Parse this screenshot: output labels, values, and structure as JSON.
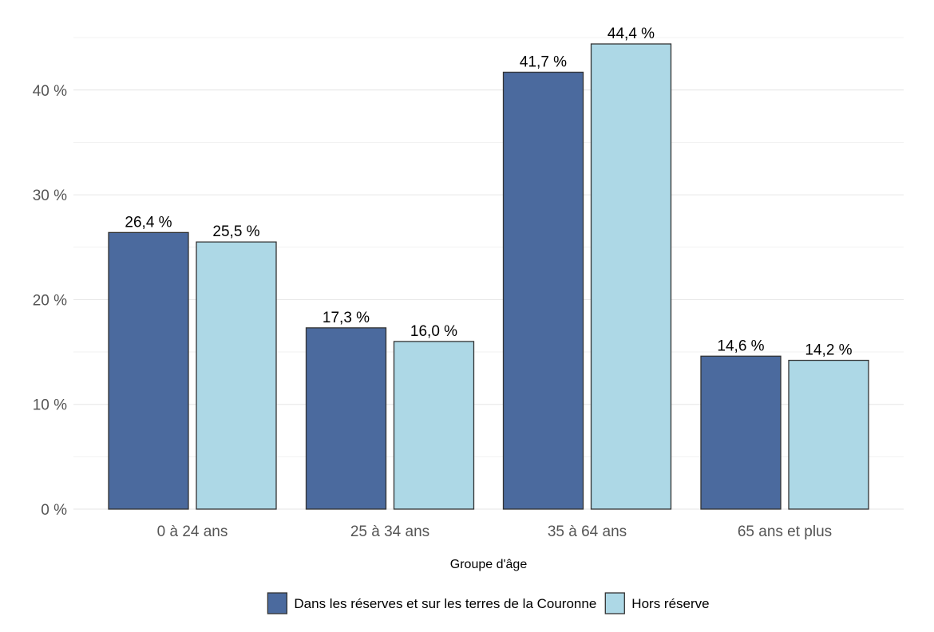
{
  "chart_data": {
    "type": "bar",
    "title": "",
    "xlabel": "Groupe d'âge",
    "ylabel": "",
    "categories": [
      "0 à 24 ans",
      "25 à 34 ans",
      "35 à 64 ans",
      "65 ans et plus"
    ],
    "series": [
      {
        "name": "Dans les réserves et sur les terres de la Couronne",
        "color": "#4b6a9e",
        "values": [
          26.4,
          17.3,
          41.7,
          14.6
        ],
        "labels": [
          "26,4 %",
          "17,3 %",
          "41,7 %",
          "14,6 %"
        ]
      },
      {
        "name": "Hors réserve",
        "color": "#add8e6",
        "values": [
          25.5,
          16.0,
          44.4,
          14.2
        ],
        "labels": [
          "25,5 %",
          "16,0 %",
          "44,4 %",
          "14,2 %"
        ]
      }
    ],
    "ylim": [
      0,
      45
    ],
    "yticks": [
      0,
      10,
      20,
      30,
      40
    ],
    "ytick_labels": [
      "0 %",
      "10 %",
      "20 %",
      "30 %",
      "40 %"
    ],
    "grid": true,
    "legend_position": "bottom"
  }
}
